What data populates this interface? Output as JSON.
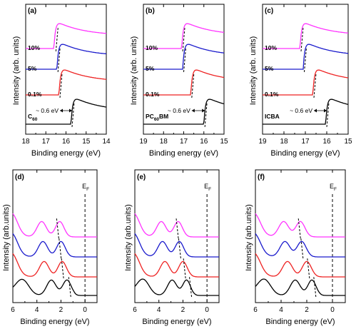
{
  "colors": {
    "magenta": "#ff33ff",
    "blue": "#1a1acc",
    "red": "#ee2222",
    "black": "#000000"
  },
  "chart_data": [
    {
      "tag": "(a)",
      "type": "line",
      "xlabel": "Binding energy (eV)",
      "ylabel": "Intensity (arb. units)",
      "xlim": [
        18,
        14
      ],
      "xticks": [
        "18",
        "17",
        "16",
        "15",
        "14"
      ],
      "series": [
        {
          "name": "10%",
          "color": "magenta",
          "cutoff": 16.5,
          "onset": 16.6
        },
        {
          "name": "5%",
          "color": "blue",
          "cutoff": 16.4,
          "onset": 16.45
        },
        {
          "name": "0.1%",
          "color": "red",
          "cutoff": 16.3,
          "onset": 16.35
        },
        {
          "name": "C60",
          "color": "black",
          "cutoff": 15.7,
          "onset": 15.75
        }
      ],
      "labels": {
        "conc": [
          "10%",
          "5%",
          "0.1%"
        ],
        "sample": "C",
        "sample_sub": "60"
      },
      "annotation": "~ 0.6 eV"
    },
    {
      "tag": "(b)",
      "type": "line",
      "xlabel": "Binding energy (eV)",
      "ylabel": "Intensity (arb. units)",
      "xlim": [
        19,
        15
      ],
      "xticks": [
        "19",
        "18",
        "17",
        "16",
        "15"
      ],
      "series": [
        {
          "name": "10%",
          "color": "magenta",
          "cutoff": 17.05,
          "onset": 17.1
        },
        {
          "name": "5%",
          "color": "blue",
          "cutoff": 17.0,
          "onset": 17.05
        },
        {
          "name": "0.1%",
          "color": "red",
          "cutoff": 16.6,
          "onset": 16.65
        },
        {
          "name": "PC60BM",
          "color": "black",
          "cutoff": 15.95,
          "onset": 16.0
        }
      ],
      "labels": {
        "conc": [
          "10%",
          "5%",
          "0.1%"
        ],
        "sample": "PC",
        "sample_sub": "60",
        "sample_tail": "BM"
      },
      "annotation": "~ 0.6 eV"
    },
    {
      "tag": "(c)",
      "type": "line",
      "xlabel": "Binding energy (eV)",
      "ylabel": "Intensity (arb. units)",
      "xlim": [
        19,
        15
      ],
      "xticks": [
        "19",
        "18",
        "17",
        "16",
        "15"
      ],
      "series": [
        {
          "name": "10%",
          "color": "magenta",
          "cutoff": 17.2,
          "onset": 17.25
        },
        {
          "name": "5%",
          "color": "blue",
          "cutoff": 17.05,
          "onset": 17.1
        },
        {
          "name": "0.1%",
          "color": "red",
          "cutoff": 16.6,
          "onset": 16.65
        },
        {
          "name": "ICBA",
          "color": "black",
          "cutoff": 16.0,
          "onset": 16.05
        }
      ],
      "labels": {
        "conc": [
          "10%",
          "5%",
          "0.1%"
        ],
        "sample": "ICBA"
      },
      "annotation": "~ 0.6 eV"
    },
    {
      "tag": "(d)",
      "type": "line",
      "xlabel": "Binding energy (eV)",
      "ylabel": "Intensity (arb.units)",
      "xlim": [
        6,
        -1
      ],
      "xticks": [
        "6",
        "4",
        "2",
        "0"
      ],
      "fermi_label": "E",
      "fermi_sub": "F",
      "series": [
        {
          "name": "10%",
          "color": "magenta",
          "peaks": [
            [
              3.6,
              0.55
            ],
            [
              2.1,
              0.5
            ]
          ],
          "homo": 2.3
        },
        {
          "name": "5%",
          "color": "blue",
          "peaks": [
            [
              3.5,
              0.55
            ],
            [
              2.0,
              0.5
            ]
          ],
          "homo": 2.1
        },
        {
          "name": "0.1%",
          "color": "red",
          "peaks": [
            [
              3.4,
              0.55
            ],
            [
              1.9,
              0.5
            ]
          ],
          "homo": 1.9
        },
        {
          "name": "C60",
          "color": "black",
          "peaks": [
            [
              5.2,
              0.75
            ],
            [
              2.8,
              0.55
            ],
            [
              1.5,
              0.5
            ]
          ],
          "homo": 1.3
        }
      ]
    },
    {
      "tag": "(e)",
      "type": "line",
      "xlabel": "Binding energy (eV)",
      "ylabel": "Intensity (arb.units)",
      "xlim": [
        6,
        -1
      ],
      "xticks": [
        "6",
        "4",
        "2",
        "0"
      ],
      "fermi_label": "E",
      "fermi_sub": "F",
      "series": [
        {
          "name": "10%",
          "color": "magenta",
          "peaks": [
            [
              3.8,
              0.55
            ],
            [
              2.4,
              0.5
            ]
          ],
          "homo": 2.5
        },
        {
          "name": "5%",
          "color": "blue",
          "peaks": [
            [
              3.7,
              0.55
            ],
            [
              2.3,
              0.5
            ]
          ],
          "homo": 2.3
        },
        {
          "name": "0.1%",
          "color": "red",
          "peaks": [
            [
              3.5,
              0.55
            ],
            [
              2.0,
              0.5
            ]
          ],
          "homo": 1.9
        },
        {
          "name": "PC60BM",
          "color": "black",
          "peaks": [
            [
              5.3,
              0.7
            ],
            [
              2.9,
              0.55
            ],
            [
              1.7,
              0.45
            ]
          ],
          "homo": 1.4
        }
      ]
    },
    {
      "tag": "(f)",
      "type": "line",
      "xlabel": "Binding energy (eV)",
      "ylabel": "Intensity (arb.units)",
      "xlim": [
        6,
        -1
      ],
      "xticks": [
        "6",
        "4",
        "2",
        "0"
      ],
      "fermi_label": "E",
      "fermi_sub": "F",
      "series": [
        {
          "name": "10%",
          "color": "magenta",
          "peaks": [
            [
              3.8,
              0.55
            ],
            [
              2.5,
              0.5
            ]
          ],
          "homo": 2.6
        },
        {
          "name": "5%",
          "color": "blue",
          "peaks": [
            [
              3.7,
              0.55
            ],
            [
              2.4,
              0.5
            ]
          ],
          "homo": 2.4
        },
        {
          "name": "0.1%",
          "color": "red",
          "peaks": [
            [
              3.5,
              0.55
            ],
            [
              2.0,
              0.5
            ]
          ],
          "homo": 1.9
        },
        {
          "name": "ICBA",
          "color": "black",
          "peaks": [
            [
              5.3,
              0.7
            ],
            [
              2.9,
              0.55
            ],
            [
              1.6,
              0.45
            ]
          ],
          "homo": 1.4
        }
      ]
    }
  ]
}
